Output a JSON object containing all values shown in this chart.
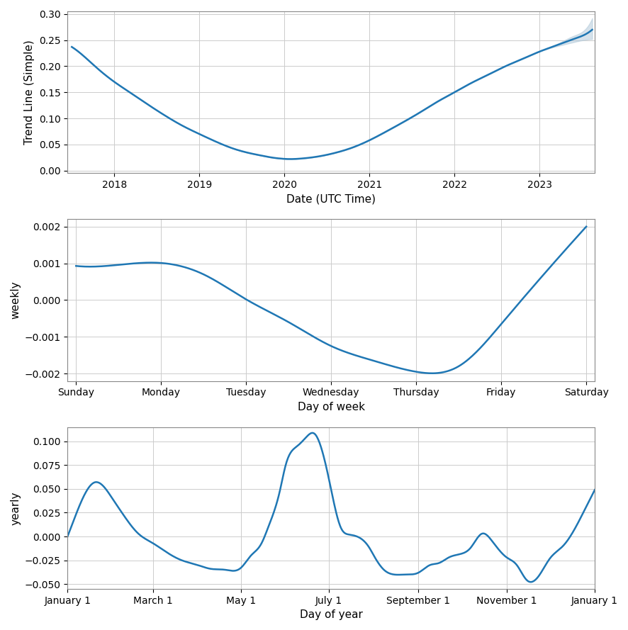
{
  "trend_x_years": [
    2017.5,
    2017.65,
    2017.8,
    2018.0,
    2018.2,
    2018.4,
    2018.6,
    2018.8,
    2019.0,
    2019.2,
    2019.4,
    2019.6,
    2019.75,
    2019.85,
    2019.95,
    2020.05,
    2020.2,
    2020.4,
    2020.6,
    2020.8,
    2021.0,
    2021.2,
    2021.4,
    2021.6,
    2021.8,
    2022.0,
    2022.2,
    2022.4,
    2022.6,
    2022.8,
    2023.0,
    2023.2,
    2023.4,
    2023.55,
    2023.62
  ],
  "trend_y": [
    0.237,
    0.218,
    0.196,
    0.17,
    0.148,
    0.126,
    0.105,
    0.086,
    0.07,
    0.055,
    0.042,
    0.033,
    0.028,
    0.025,
    0.023,
    0.022,
    0.023,
    0.027,
    0.034,
    0.044,
    0.058,
    0.075,
    0.093,
    0.112,
    0.132,
    0.15,
    0.168,
    0.184,
    0.2,
    0.214,
    0.228,
    0.24,
    0.252,
    0.262,
    0.27
  ],
  "trend_upper": [
    0.237,
    0.218,
    0.196,
    0.17,
    0.148,
    0.126,
    0.105,
    0.086,
    0.07,
    0.055,
    0.042,
    0.033,
    0.028,
    0.025,
    0.023,
    0.022,
    0.023,
    0.027,
    0.034,
    0.044,
    0.058,
    0.075,
    0.093,
    0.112,
    0.132,
    0.15,
    0.168,
    0.184,
    0.2,
    0.214,
    0.228,
    0.242,
    0.258,
    0.273,
    0.292
  ],
  "trend_lower": [
    0.237,
    0.218,
    0.196,
    0.17,
    0.148,
    0.126,
    0.105,
    0.086,
    0.07,
    0.055,
    0.042,
    0.033,
    0.028,
    0.025,
    0.023,
    0.022,
    0.023,
    0.027,
    0.034,
    0.044,
    0.058,
    0.075,
    0.093,
    0.112,
    0.132,
    0.15,
    0.168,
    0.184,
    0.2,
    0.214,
    0.228,
    0.238,
    0.246,
    0.251,
    0.252
  ],
  "trend_xlabel": "Date (UTC Time)",
  "trend_ylabel": "Trend Line (Simple)",
  "trend_xticks": [
    2018,
    2019,
    2020,
    2021,
    2022,
    2023
  ],
  "trend_xlim": [
    2017.45,
    2023.65
  ],
  "trend_ylim": [
    -0.005,
    0.305
  ],
  "trend_yticks": [
    0.0,
    0.05,
    0.1,
    0.15,
    0.2,
    0.25,
    0.3
  ],
  "weekly_x": [
    0,
    0.5,
    1.0,
    1.5,
    2.0,
    2.5,
    3.0,
    3.5,
    4.0,
    4.5,
    5.0,
    5.5,
    6.0
  ],
  "weekly_y": [
    0.00093,
    0.00096,
    0.00101,
    0.0007,
    2e-05,
    -0.0006,
    -0.00125,
    -0.00165,
    -0.00195,
    -0.0018,
    -0.00065,
    0.0007,
    0.002
  ],
  "weekly_labels": [
    "Sunday",
    "Monday",
    "Tuesday",
    "Wednesday",
    "Thursday",
    "Friday",
    "Saturday"
  ],
  "weekly_xticks": [
    0,
    1,
    2,
    3,
    4,
    5,
    6
  ],
  "weekly_xlabel": "Day of week",
  "weekly_ylabel": "weekly",
  "weekly_ylim": [
    -0.0022,
    0.0022
  ],
  "weekly_yticks": [
    -0.002,
    -0.001,
    0.0,
    0.001,
    0.002
  ],
  "yearly_x_days": [
    1,
    10,
    20,
    32,
    40,
    50,
    60,
    70,
    80,
    91,
    100,
    110,
    121,
    128,
    135,
    140,
    148,
    152,
    160,
    166,
    172,
    182,
    190,
    196,
    210,
    213,
    220,
    227,
    235,
    244,
    252,
    258,
    265,
    274,
    280,
    288,
    295,
    305,
    312,
    319,
    327,
    335,
    344,
    349,
    358,
    366
  ],
  "yearly_y": [
    0.0,
    0.035,
    0.057,
    0.04,
    0.022,
    0.003,
    -0.007,
    -0.017,
    -0.025,
    -0.03,
    -0.034,
    -0.035,
    -0.033,
    -0.02,
    -0.008,
    0.01,
    0.048,
    0.075,
    0.095,
    0.104,
    0.108,
    0.06,
    0.01,
    0.002,
    -0.012,
    -0.02,
    -0.035,
    -0.04,
    -0.04,
    -0.038,
    -0.03,
    -0.028,
    -0.022,
    -0.018,
    -0.012,
    0.003,
    -0.005,
    -0.022,
    -0.03,
    -0.046,
    -0.042,
    -0.023,
    -0.01,
    0.0,
    0.025,
    0.049
  ],
  "yearly_xtick_days": [
    1,
    60,
    121,
    182,
    244,
    305,
    366
  ],
  "yearly_xtick_labels": [
    "January 1",
    "March 1",
    "May 1",
    "July 1",
    "September 1",
    "November 1",
    "January 1"
  ],
  "yearly_xlabel": "Day of year",
  "yearly_ylabel": "yearly",
  "yearly_ylim": [
    -0.055,
    0.115
  ],
  "yearly_yticks": [
    -0.05,
    -0.025,
    0.0,
    0.025,
    0.05,
    0.075,
    0.1
  ],
  "line_color": "#1f77b4",
  "fill_color": "#aec7d8",
  "bg_color": "#ffffff",
  "grid_color": "#cccccc"
}
